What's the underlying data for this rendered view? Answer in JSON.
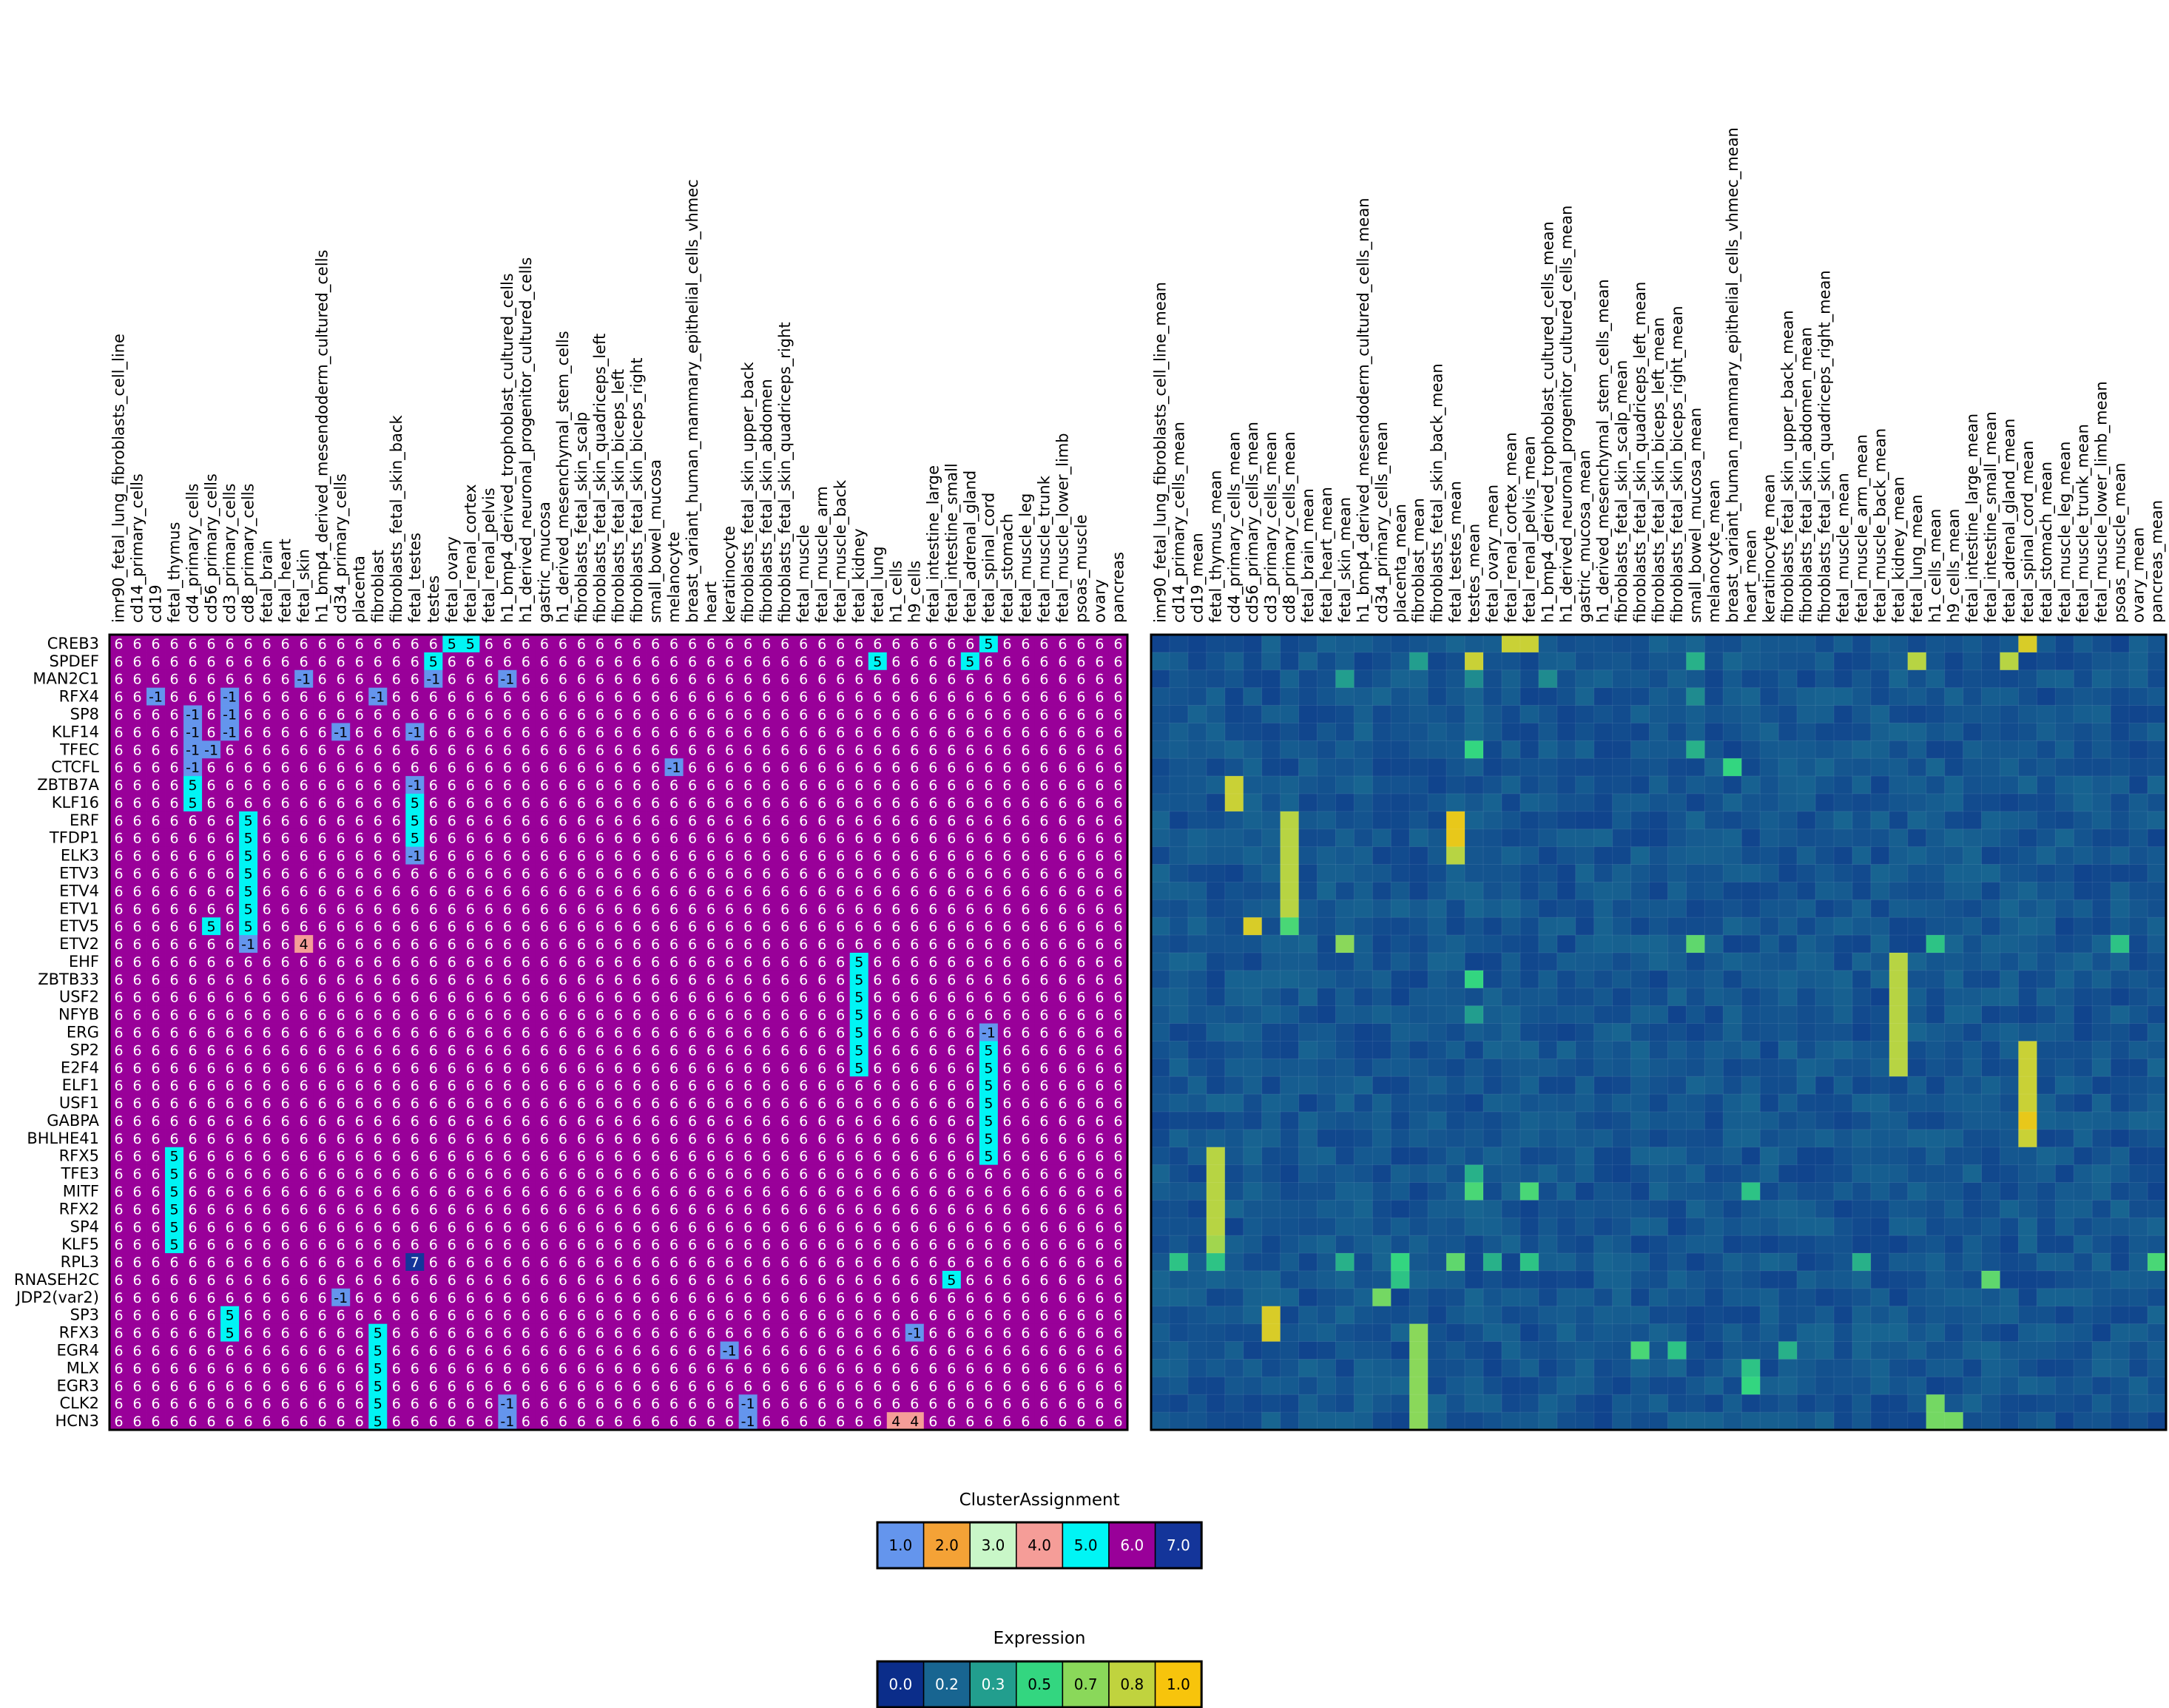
{
  "chart_data": [
    {
      "type": "heatmap",
      "name": "cluster-assignment",
      "rows": [
        "CREB3",
        "SPDEF",
        "MAN2C1",
        "RFX4",
        "SP8",
        "KLF14",
        "TFEC",
        "CTCFL",
        "ZBTB7A",
        "KLF16",
        "ERF",
        "TFDP1",
        "ELK3",
        "ETV3",
        "ETV4",
        "ETV1",
        "ETV5",
        "ETV2",
        "EHF",
        "ZBTB33",
        "USF2",
        "NFYB",
        "ERG",
        "SP2",
        "E2F4",
        "ELF1",
        "USF1",
        "GABPA",
        "BHLHE41",
        "RFX5",
        "TFE3",
        "MITF",
        "RFX2",
        "SP4",
        "KLF5",
        "RPL3",
        "RNASEH2C",
        "JDP2(var2)",
        "SP3",
        "RFX3",
        "EGR4",
        "MLX",
        "EGR3",
        "CLK2",
        "HCN3"
      ],
      "columns": [
        "imr90_fetal_lung_fibroblasts_cell_line",
        "cd14_primary_cells",
        "cd19",
        "fetal_thymus",
        "cd4_primary_cells",
        "cd56_primary_cells",
        "cd3_primary_cells",
        "cd8_primary_cells",
        "fetal_brain",
        "fetal_heart",
        "fetal_skin",
        "h1_bmp4_derived_mesendoderm_cultured_cells",
        "cd34_primary_cells",
        "placenta",
        "fibroblast",
        "fibroblasts_fetal_skin_back",
        "fetal_testes",
        "testes",
        "fetal_ovary",
        "fetal_renal_cortex",
        "fetal_renal_pelvis",
        "h1_bmp4_derived_trophoblast_cultured_cells",
        "h1_derived_neuronal_progenitor_cultured_cells",
        "gastric_mucosa",
        "h1_derived_mesenchymal_stem_cells",
        "fibroblasts_fetal_skin_scalp",
        "fibroblasts_fetal_skin_quadriceps_left",
        "fibroblasts_fetal_skin_biceps_left",
        "fibroblasts_fetal_skin_biceps_right",
        "small_bowel_mucosa",
        "melanocyte",
        "breast_variant_human_mammary_epithelial_cells_vhmec",
        "heart",
        "keratinocyte",
        "fibroblasts_fetal_skin_upper_back",
        "fibroblasts_fetal_skin_abdomen",
        "fibroblasts_fetal_skin_quadriceps_right",
        "fetal_muscle",
        "fetal_muscle_arm",
        "fetal_muscle_back",
        "fetal_kidney",
        "fetal_lung",
        "h1_cells",
        "h9_cells",
        "fetal_intestine_large",
        "fetal_intestine_small",
        "fetal_adrenal_gland",
        "fetal_spinal_cord",
        "fetal_stomach",
        "fetal_muscle_leg",
        "fetal_muscle_trunk",
        "fetal_muscle_lower_limb",
        "psoas_muscle",
        "ovary",
        "pancreas"
      ],
      "default_value": 6,
      "exceptions": [
        [
          0,
          18,
          5
        ],
        [
          0,
          19,
          5
        ],
        [
          0,
          47,
          5
        ],
        [
          1,
          17,
          5
        ],
        [
          1,
          41,
          5
        ],
        [
          1,
          46,
          5
        ],
        [
          2,
          10,
          -1
        ],
        [
          2,
          17,
          -1
        ],
        [
          2,
          21,
          -1
        ],
        [
          3,
          2,
          -1
        ],
        [
          3,
          6,
          -1
        ],
        [
          3,
          14,
          -1
        ],
        [
          4,
          4,
          -1
        ],
        [
          4,
          6,
          -1
        ],
        [
          5,
          4,
          -1
        ],
        [
          5,
          6,
          -1
        ],
        [
          5,
          12,
          -1
        ],
        [
          5,
          16,
          -1
        ],
        [
          6,
          4,
          -1
        ],
        [
          6,
          5,
          -1
        ],
        [
          7,
          4,
          -1
        ],
        [
          7,
          30,
          -1
        ],
        [
          8,
          4,
          5
        ],
        [
          8,
          16,
          -1
        ],
        [
          9,
          4,
          5
        ],
        [
          9,
          16,
          5
        ],
        [
          10,
          7,
          5
        ],
        [
          10,
          16,
          5
        ],
        [
          11,
          7,
          5
        ],
        [
          11,
          16,
          5
        ],
        [
          12,
          7,
          5
        ],
        [
          12,
          16,
          -1
        ],
        [
          13,
          7,
          5
        ],
        [
          14,
          7,
          5
        ],
        [
          15,
          7,
          5
        ],
        [
          16,
          5,
          5
        ],
        [
          16,
          7,
          5
        ],
        [
          17,
          7,
          -1
        ],
        [
          17,
          10,
          4
        ],
        [
          18,
          40,
          5
        ],
        [
          19,
          40,
          5
        ],
        [
          20,
          40,
          5
        ],
        [
          21,
          40,
          5
        ],
        [
          22,
          40,
          5
        ],
        [
          22,
          47,
          -1
        ],
        [
          23,
          40,
          5
        ],
        [
          23,
          47,
          5
        ],
        [
          24,
          40,
          5
        ],
        [
          24,
          47,
          5
        ],
        [
          25,
          47,
          5
        ],
        [
          26,
          47,
          5
        ],
        [
          27,
          47,
          5
        ],
        [
          28,
          47,
          5
        ],
        [
          29,
          3,
          5
        ],
        [
          29,
          47,
          5
        ],
        [
          30,
          3,
          5
        ],
        [
          31,
          3,
          5
        ],
        [
          32,
          3,
          5
        ],
        [
          33,
          3,
          5
        ],
        [
          34,
          3,
          5
        ],
        [
          35,
          16,
          7
        ],
        [
          36,
          45,
          5
        ],
        [
          37,
          12,
          -1
        ],
        [
          38,
          6,
          5
        ],
        [
          39,
          6,
          5
        ],
        [
          39,
          14,
          5
        ],
        [
          39,
          43,
          -1
        ],
        [
          40,
          14,
          5
        ],
        [
          40,
          33,
          -1
        ],
        [
          41,
          14,
          5
        ],
        [
          42,
          14,
          5
        ],
        [
          43,
          14,
          5
        ],
        [
          43,
          21,
          -1
        ],
        [
          43,
          34,
          -1
        ],
        [
          44,
          14,
          5
        ],
        [
          44,
          21,
          -1
        ],
        [
          44,
          34,
          -1
        ],
        [
          44,
          42,
          4
        ],
        [
          44,
          43,
          4
        ]
      ]
    },
    {
      "type": "heatmap",
      "name": "expression",
      "rows": [
        "CREB3",
        "SPDEF",
        "MAN2C1",
        "RFX4",
        "SP8",
        "KLF14",
        "TFEC",
        "CTCFL",
        "ZBTB7A",
        "KLF16",
        "ERF",
        "TFDP1",
        "ELK3",
        "ETV3",
        "ETV4",
        "ETV1",
        "ETV5",
        "ETV2",
        "EHF",
        "ZBTB33",
        "USF2",
        "NFYB",
        "ERG",
        "SP2",
        "E2F4",
        "ELF1",
        "USF1",
        "GABPA",
        "BHLHE41",
        "RFX5",
        "TFE3",
        "MITF",
        "RFX2",
        "SP4",
        "KLF5",
        "RPL3",
        "RNASEH2C",
        "JDP2(var2)",
        "SP3",
        "RFX3",
        "EGR4",
        "MLX",
        "EGR3",
        "CLK2",
        "HCN3"
      ],
      "columns": [
        "imr90_fetal_lung_fibroblasts_cell_line_mean",
        "cd14_primary_cells_mean",
        "cd19_mean",
        "fetal_thymus_mean",
        "cd4_primary_cells_mean",
        "cd56_primary_cells_mean",
        "cd3_primary_cells_mean",
        "cd8_primary_cells_mean",
        "fetal_brain_mean",
        "fetal_heart_mean",
        "fetal_skin_mean",
        "h1_bmp4_derived_mesendoderm_cultured_cells_mean",
        "cd34_primary_cells_mean",
        "placenta_mean",
        "fibroblast_mean",
        "fibroblasts_fetal_skin_back_mean",
        "fetal_testes_mean",
        "testes_mean",
        "fetal_ovary_mean",
        "fetal_renal_cortex_mean",
        "fetal_renal_pelvis_mean",
        "h1_bmp4_derived_trophoblast_cultured_cells_mean",
        "h1_derived_neuronal_progenitor_cultured_cells_mean",
        "gastric_mucosa_mean",
        "h1_derived_mesenchymal_stem_cells_mean",
        "fibroblasts_fetal_skin_scalp_mean",
        "fibroblasts_fetal_skin_quadriceps_left_mean",
        "fibroblasts_fetal_skin_biceps_left_mean",
        "fibroblasts_fetal_skin_biceps_right_mean",
        "small_bowel_mucosa_mean",
        "melanocyte_mean",
        "breast_variant_human_mammary_epithelial_cells_vhmec_mean",
        "heart_mean",
        "keratinocyte_mean",
        "fibroblasts_fetal_skin_upper_back_mean",
        "fibroblasts_fetal_skin_abdomen_mean",
        "fibroblasts_fetal_skin_quadriceps_right_mean",
        "fetal_muscle_mean",
        "fetal_muscle_arm_mean",
        "fetal_muscle_back_mean",
        "fetal_kidney_mean",
        "fetal_lung_mean",
        "h1_cells_mean",
        "h9_cells_mean",
        "fetal_intestine_large_mean",
        "fetal_intestine_small_mean",
        "fetal_adrenal_gland_mean",
        "fetal_spinal_cord_mean",
        "fetal_stomach_mean",
        "fetal_muscle_leg_mean",
        "fetal_muscle_trunk_mean",
        "fetal_muscle_lower_limb_mean",
        "psoas_muscle_mean",
        "ovary_mean",
        "pancreas_mean"
      ],
      "baseline": [
        0.08,
        0.2
      ],
      "highlights": [
        [
          0,
          19,
          0.85
        ],
        [
          0,
          20,
          0.85
        ],
        [
          0,
          47,
          0.9
        ],
        [
          1,
          17,
          0.85
        ],
        [
          1,
          41,
          0.8
        ],
        [
          1,
          46,
          0.8
        ],
        [
          1,
          14,
          0.35
        ],
        [
          1,
          29,
          0.4
        ],
        [
          2,
          10,
          0.35
        ],
        [
          2,
          17,
          0.3
        ],
        [
          2,
          21,
          0.3
        ],
        [
          3,
          29,
          0.3
        ],
        [
          6,
          17,
          0.5
        ],
        [
          6,
          29,
          0.4
        ],
        [
          7,
          31,
          0.5
        ],
        [
          8,
          4,
          0.85
        ],
        [
          9,
          4,
          0.85
        ],
        [
          10,
          16,
          0.95
        ],
        [
          11,
          16,
          0.95
        ],
        [
          12,
          16,
          0.8
        ],
        [
          10,
          7,
          0.8
        ],
        [
          11,
          7,
          0.8
        ],
        [
          12,
          7,
          0.8
        ],
        [
          13,
          7,
          0.8
        ],
        [
          14,
          7,
          0.8
        ],
        [
          15,
          7,
          0.8
        ],
        [
          16,
          7,
          0.55
        ],
        [
          16,
          5,
          0.9
        ],
        [
          17,
          10,
          0.7
        ],
        [
          17,
          29,
          0.6
        ],
        [
          17,
          42,
          0.45
        ],
        [
          17,
          52,
          0.45
        ],
        [
          18,
          40,
          0.8
        ],
        [
          19,
          40,
          0.8
        ],
        [
          20,
          40,
          0.8
        ],
        [
          21,
          40,
          0.8
        ],
        [
          22,
          40,
          0.8
        ],
        [
          23,
          40,
          0.8
        ],
        [
          24,
          40,
          0.8
        ],
        [
          19,
          17,
          0.5
        ],
        [
          21,
          17,
          0.35
        ],
        [
          23,
          47,
          0.85
        ],
        [
          24,
          47,
          0.85
        ],
        [
          25,
          47,
          0.85
        ],
        [
          26,
          47,
          0.85
        ],
        [
          27,
          47,
          0.95
        ],
        [
          28,
          47,
          0.85
        ],
        [
          29,
          3,
          0.8
        ],
        [
          30,
          3,
          0.8
        ],
        [
          31,
          3,
          0.8
        ],
        [
          32,
          3,
          0.8
        ],
        [
          33,
          3,
          0.8
        ],
        [
          34,
          3,
          0.75
        ],
        [
          31,
          17,
          0.55
        ],
        [
          31,
          20,
          0.55
        ],
        [
          31,
          32,
          0.45
        ],
        [
          30,
          17,
          0.4
        ],
        [
          35,
          16,
          0.6
        ],
        [
          35,
          1,
          0.45
        ],
        [
          35,
          3,
          0.45
        ],
        [
          35,
          10,
          0.4
        ],
        [
          35,
          13,
          0.5
        ],
        [
          35,
          18,
          0.4
        ],
        [
          35,
          20,
          0.45
        ],
        [
          35,
          38,
          0.4
        ],
        [
          35,
          54,
          0.55
        ],
        [
          36,
          45,
          0.6
        ],
        [
          36,
          13,
          0.45
        ],
        [
          37,
          12,
          0.65
        ],
        [
          38,
          6,
          0.9
        ],
        [
          39,
          6,
          0.9
        ],
        [
          39,
          14,
          0.7
        ],
        [
          40,
          14,
          0.7
        ],
        [
          41,
          14,
          0.7
        ],
        [
          42,
          14,
          0.7
        ],
        [
          43,
          14,
          0.7
        ],
        [
          44,
          14,
          0.7
        ],
        [
          40,
          26,
          0.55
        ],
        [
          40,
          28,
          0.45
        ],
        [
          40,
          34,
          0.4
        ],
        [
          41,
          32,
          0.45
        ],
        [
          42,
          32,
          0.5
        ],
        [
          43,
          42,
          0.65
        ],
        [
          44,
          42,
          0.65
        ],
        [
          44,
          43,
          0.65
        ]
      ]
    }
  ],
  "legend_cluster": {
    "title": "ClusterAssignment",
    "labels": [
      "1.0",
      "2.0",
      "3.0",
      "4.0",
      "5.0",
      "6.0",
      "7.0"
    ],
    "colors": [
      "#6495ed",
      "#f4a236",
      "#c9f7c8",
      "#f59d98",
      "#00f5f5",
      "#990099",
      "#14359a"
    ],
    "text_colors": [
      "#000000",
      "#000000",
      "#000000",
      "#000000",
      "#000000",
      "#ffffff",
      "#ffffff"
    ]
  },
  "legend_expression": {
    "title": "Expression",
    "labels": [
      "0.0",
      "0.2",
      "0.3",
      "0.5",
      "0.7",
      "0.8",
      "1.0"
    ],
    "colors": [
      "#0b2d8a",
      "#186591",
      "#229e8e",
      "#33d680",
      "#8ad85a",
      "#c0d33e",
      "#f7c40c"
    ],
    "text_colors": [
      "#ffffff",
      "#ffffff",
      "#ffffff",
      "#000000",
      "#000000",
      "#000000",
      "#000000"
    ]
  },
  "colors": {
    "cluster": {
      "-1": "#6495ed",
      "4": "#f59d98",
      "5": "#00f5f5",
      "6": "#990099",
      "7": "#14359a"
    },
    "cluster_text": {
      "-1": "#000000",
      "4": "#000000",
      "5": "#000000",
      "6": "#ffffff",
      "7": "#ffffff"
    }
  }
}
